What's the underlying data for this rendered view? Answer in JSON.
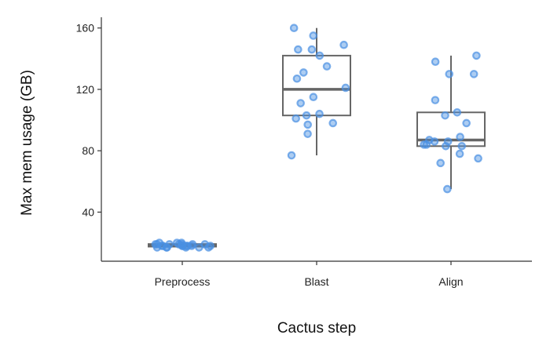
{
  "chart_data": {
    "type": "box",
    "xlabel": "Cactus step",
    "ylabel": "Max mem usage (GB)",
    "categories": [
      "Preprocess",
      "Blast",
      "Align"
    ],
    "ylim": [
      8,
      167
    ],
    "yticks": [
      40,
      80,
      120,
      160
    ],
    "grid": false,
    "point_color": "#4a90e2",
    "box_color": "#666666",
    "boxes": [
      {
        "category": "Preprocess",
        "whisker_low": 16.5,
        "q1": 17.5,
        "median": 18.5,
        "q3": 19.2,
        "whisker_high": 20,
        "points": [
          19,
          18,
          20,
          17,
          19,
          18,
          17,
          19,
          18,
          20,
          19,
          17,
          18,
          19,
          18,
          17,
          19,
          18,
          17,
          20,
          18,
          19,
          17,
          18
        ]
      },
      {
        "category": "Blast",
        "whisker_low": 77,
        "q1": 103,
        "median": 120,
        "q3": 142,
        "whisker_high": 160,
        "points": [
          160,
          155,
          149,
          146,
          146,
          142,
          135,
          131,
          127,
          121,
          115,
          111,
          104,
          103,
          101,
          98,
          97,
          91,
          77
        ]
      },
      {
        "category": "Align",
        "whisker_low": 55,
        "q1": 83,
        "median": 87,
        "q3": 105,
        "whisker_high": 142,
        "points": [
          142,
          138,
          130,
          130,
          113,
          105,
          103,
          98,
          89,
          87,
          86,
          86,
          84,
          84,
          83,
          83,
          78,
          75,
          72,
          55
        ]
      }
    ]
  }
}
